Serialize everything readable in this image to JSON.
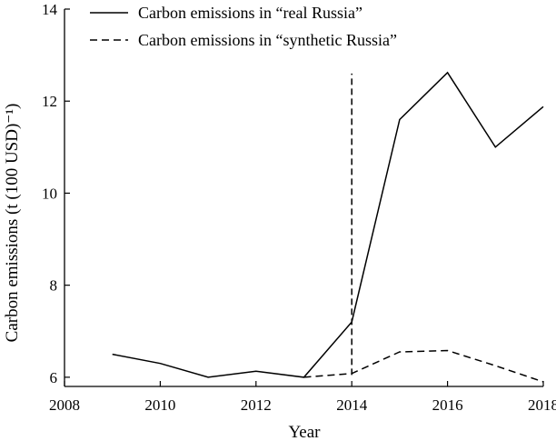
{
  "chart_data": {
    "type": "line",
    "title": "",
    "xlabel": "Year",
    "ylabel": "Carbon emissions (t (100 USD)⁻¹)",
    "xlim": [
      2008,
      2018
    ],
    "ylim": [
      5.8,
      14
    ],
    "x_ticks": [
      "2008",
      "2010",
      "2012",
      "2014",
      "2016",
      "2018"
    ],
    "y_ticks": [
      "6",
      "8",
      "10",
      "12",
      "14"
    ],
    "x_tick_values": [
      2008,
      2010,
      2012,
      2014,
      2016,
      2018
    ],
    "y_tick_values": [
      6,
      8,
      10,
      12,
      14
    ],
    "grid": false,
    "legend_position": "top-left",
    "series": [
      {
        "name": "Carbon emissions in “real Russia”",
        "style": "solid",
        "color": "#000000",
        "x": [
          2009,
          2010,
          2011,
          2012,
          2013,
          2014,
          2015,
          2016,
          2017,
          2018
        ],
        "values": [
          6.5,
          6.3,
          6.0,
          6.13,
          6.0,
          7.2,
          11.6,
          12.62,
          11.0,
          11.88
        ]
      },
      {
        "name": "Carbon emissions in “synthetic Russia”",
        "style": "dashed",
        "color": "#000000",
        "x": [
          2013,
          2014,
          2015,
          2016,
          2017,
          2018
        ],
        "values": [
          6.0,
          6.08,
          6.55,
          6.58,
          6.25,
          5.9
        ]
      }
    ],
    "annotations": [
      {
        "type": "vertical-line",
        "style": "dashed",
        "x": 2014,
        "y_range": [
          6.05,
          12.6
        ]
      }
    ]
  }
}
